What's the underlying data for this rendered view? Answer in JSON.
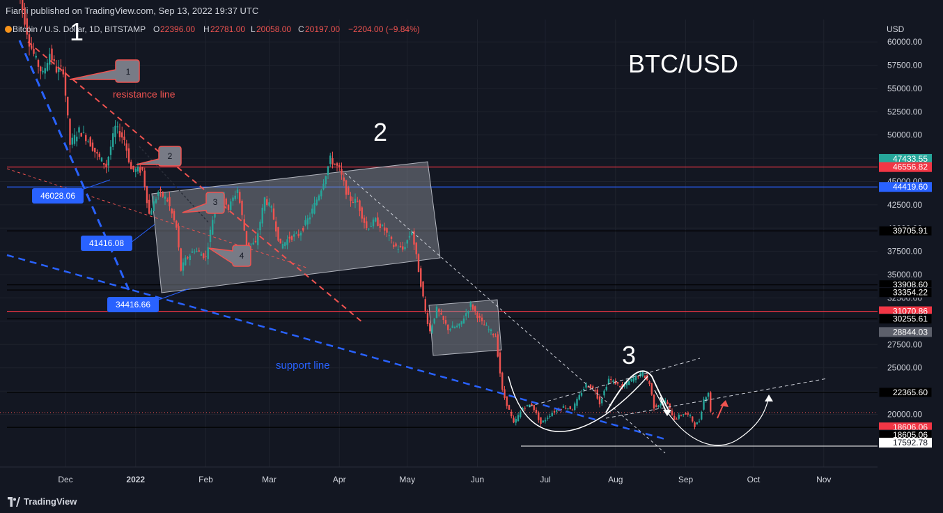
{
  "header": {
    "published": "Fiardi published on TradingView.com, Sep 13, 2022 19:37 UTC"
  },
  "legend": {
    "symbol": "Bitcoin / U.S. Dollar, 1D, BITSTAMP",
    "o_label": "O",
    "o_value": "22396.00",
    "h_label": "H",
    "h_value": "22781.00",
    "l_label": "L",
    "l_value": "20058.00",
    "c_label": "C",
    "c_value": "20197.00",
    "change": "−2204.00 (−9.84%)"
  },
  "footer": {
    "brand": "TradingView",
    "brand_icon": "tradingview-logo-icon"
  },
  "colors": {
    "background": "#131722",
    "up": "#26a69a",
    "down": "#ef5350",
    "resistance": "#f05350",
    "support": "#2962ff",
    "annotation": "#ffffff",
    "box": "#9598a1",
    "callout": "#787b86",
    "label_blue": "#2962ff"
  },
  "chart_data": {
    "type": "candlestick",
    "title": "BTC/USD",
    "currency_label": "USD",
    "y_ticks": [
      "60000.00",
      "57500.00",
      "55000.00",
      "52500.00",
      "50000.00",
      "47500.00",
      "45000.00",
      "42500.00",
      "40000.00",
      "37500.00",
      "35000.00",
      "32500.00",
      "30000.00",
      "27500.00",
      "25000.00",
      "22500.00",
      "20000.00"
    ],
    "ylim": [
      14500,
      62400
    ],
    "x_ticks": [
      "Dec",
      "2022",
      "Feb",
      "Mar",
      "Apr",
      "May",
      "Jun",
      "Jul",
      "Aug",
      "Sep",
      "Oct",
      "Nov"
    ],
    "price_path": [
      [
        "2021-11-10",
        68000
      ],
      [
        "2021-11-13",
        63500
      ],
      [
        "2021-11-16",
        60000
      ],
      [
        "2021-11-19",
        58000
      ],
      [
        "2021-11-22",
        56500
      ],
      [
        "2021-11-25",
        58800
      ],
      [
        "2021-11-28",
        57000
      ],
      [
        "2021-12-01",
        57000
      ],
      [
        "2021-12-04",
        49000
      ],
      [
        "2021-12-08",
        50500
      ],
      [
        "2021-12-12",
        49500
      ],
      [
        "2021-12-16",
        47800
      ],
      [
        "2021-12-20",
        46700
      ],
      [
        "2021-12-24",
        50800
      ],
      [
        "2021-12-28",
        49500
      ],
      [
        "2021-12-31",
        46300
      ],
      [
        "2022-01-05",
        46200
      ],
      [
        "2022-01-08",
        41500
      ],
      [
        "2022-01-12",
        43900
      ],
      [
        "2022-01-16",
        43000
      ],
      [
        "2022-01-20",
        40000
      ],
      [
        "2022-01-22",
        35500
      ],
      [
        "2022-01-24",
        36600
      ],
      [
        "2022-01-28",
        37700
      ],
      [
        "2022-02-02",
        36900
      ],
      [
        "2022-02-06",
        42400
      ],
      [
        "2022-02-10",
        43500
      ],
      [
        "2022-02-12",
        42100
      ],
      [
        "2022-02-16",
        44200
      ],
      [
        "2022-02-20",
        38300
      ],
      [
        "2022-02-24",
        38300
      ],
      [
        "2022-02-28",
        43200
      ],
      [
        "2022-03-03",
        42000
      ],
      [
        "2022-03-07",
        38000
      ],
      [
        "2022-03-11",
        39000
      ],
      [
        "2022-03-15",
        39300
      ],
      [
        "2022-03-20",
        41300
      ],
      [
        "2022-03-25",
        44300
      ],
      [
        "2022-03-29",
        47400
      ],
      [
        "2022-04-02",
        46300
      ],
      [
        "2022-04-06",
        43200
      ],
      [
        "2022-04-10",
        42800
      ],
      [
        "2022-04-14",
        40000
      ],
      [
        "2022-04-18",
        40800
      ],
      [
        "2022-04-22",
        39800
      ],
      [
        "2022-04-26",
        38100
      ],
      [
        "2022-04-30",
        37700
      ],
      [
        "2022-05-04",
        39700
      ],
      [
        "2022-05-07",
        35500
      ],
      [
        "2022-05-10",
        31000
      ],
      [
        "2022-05-12",
        28900
      ],
      [
        "2022-05-15",
        31300
      ],
      [
        "2022-05-20",
        29200
      ],
      [
        "2022-05-25",
        29500
      ],
      [
        "2022-05-30",
        31800
      ],
      [
        "2022-06-04",
        29800
      ],
      [
        "2022-06-10",
        28400
      ],
      [
        "2022-06-13",
        22500
      ],
      [
        "2022-06-18",
        19000
      ],
      [
        "2022-06-22",
        20700
      ],
      [
        "2022-06-26",
        21100
      ],
      [
        "2022-06-30",
        19000
      ],
      [
        "2022-07-05",
        20200
      ],
      [
        "2022-07-10",
        20800
      ],
      [
        "2022-07-14",
        20600
      ],
      [
        "2022-07-18",
        22400
      ],
      [
        "2022-07-20",
        23200
      ],
      [
        "2022-07-24",
        22600
      ],
      [
        "2022-07-26",
        21200
      ],
      [
        "2022-07-30",
        23800
      ],
      [
        "2022-08-05",
        22900
      ],
      [
        "2022-08-10",
        23900
      ],
      [
        "2022-08-14",
        24400
      ],
      [
        "2022-08-17",
        23300
      ],
      [
        "2022-08-19",
        20800
      ],
      [
        "2022-08-24",
        21500
      ],
      [
        "2022-08-28",
        19500
      ],
      [
        "2022-09-01",
        20100
      ],
      [
        "2022-09-04",
        19800
      ],
      [
        "2022-09-06",
        18800
      ],
      [
        "2022-09-08",
        19300
      ],
      [
        "2022-09-10",
        21600
      ],
      [
        "2022-09-12",
        22400
      ],
      [
        "2022-09-13",
        20197
      ]
    ],
    "price_labels": [
      {
        "text": "47433.55",
        "bg": "#26a69a"
      },
      {
        "text": "46556.82",
        "bg": "#f23645"
      },
      {
        "text": "44419.60",
        "bg": "#2962ff"
      },
      {
        "text": "39705.91",
        "bg": "#000000"
      },
      {
        "text": "33908.60",
        "bg": "#000000"
      },
      {
        "text": "33354.22",
        "bg": "#000000"
      },
      {
        "text": "31070.86",
        "bg": "#f23645"
      },
      {
        "text": "30255.61",
        "bg": "#000000"
      },
      {
        "text": "28844.03",
        "bg": "#5d606b"
      },
      {
        "text": "22365.60",
        "bg": "#000000"
      },
      {
        "text": "18605.06",
        "bg": "#000000"
      },
      {
        "text": "18606.06",
        "bg": "#f23645"
      },
      {
        "text": "17592.78",
        "bg": "#ffffff",
        "fg": "#131722"
      }
    ],
    "horizontal_lines": [
      {
        "price": 46556.82,
        "color": "#f23645"
      },
      {
        "price": 44419.6,
        "color": "#2962ff"
      },
      {
        "price": 39705.91,
        "color": "#000000"
      },
      {
        "price": 33908.6,
        "color": "#000000"
      },
      {
        "price": 33354.22,
        "color": "#000000"
      },
      {
        "price": 31070.86,
        "color": "#f23645"
      },
      {
        "price": 30255.61,
        "color": "#000000"
      },
      {
        "price": 22365.6,
        "color": "#000000"
      },
      {
        "price": 18605.06,
        "color": "#000000"
      }
    ],
    "chart_labels": [
      {
        "text": "46028.06"
      },
      {
        "text": "41416.08"
      },
      {
        "text": "34416.66"
      }
    ],
    "annotations": {
      "wave_1": "1",
      "wave_2": "2",
      "wave_3": "3",
      "resistance_line": "resistance line",
      "support_line": "support line",
      "callouts": [
        "1",
        "2",
        "3",
        "4"
      ]
    },
    "grid": true
  }
}
